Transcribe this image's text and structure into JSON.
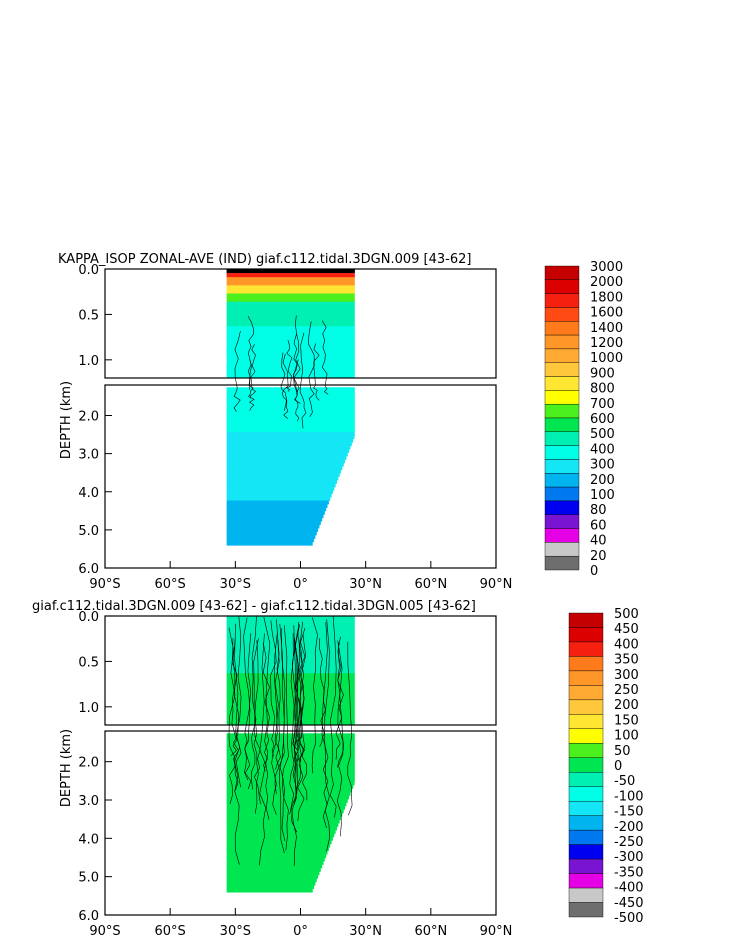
{
  "chart_data": [
    {
      "type": "heatmap",
      "title": "KAPPA_ISOP ZONAL-AVE (IND) giaf.c112.tidal.3DGN.009 [43-62]",
      "xlabel": "",
      "ylabel": "DEPTH (km)",
      "x_ticks": [
        "90°S",
        "60°S",
        "30°S",
        "0°",
        "30°N",
        "60°N",
        "90°N"
      ],
      "y_ticks_upper": [
        "0.0",
        "0.5",
        "1.0"
      ],
      "y_ticks_lower": [
        "2.0",
        "3.0",
        "4.0",
        "5.0",
        "6.0"
      ],
      "y_break_km": 1.2,
      "xlim": [
        -90,
        90
      ],
      "ylim": [
        0,
        6
      ],
      "data_extent": {
        "lat_min": -34,
        "lat_max": 25,
        "max_depth_km": 5.4
      },
      "colorbar_labels": [
        "3000",
        "2000",
        "1800",
        "1600",
        "1400",
        "1200",
        "1000",
        "900",
        "800",
        "700",
        "600",
        "500",
        "400",
        "300",
        "200",
        "100",
        "80",
        "60",
        "40",
        "20",
        "0"
      ],
      "colorbar_colors": [
        "#c40000",
        "#dc0000",
        "#f52010",
        "#ff4a14",
        "#ff7a1a",
        "#ff9628",
        "#ffaa32",
        "#ffc83c",
        "#ffe632",
        "#ffff00",
        "#4cf01c",
        "#00e650",
        "#00f0b4",
        "#00ffe6",
        "#14e6f5",
        "#00b4f0",
        "#0078f0",
        "#0000f0",
        "#7814d2",
        "#e600e6",
        "#c8c8c8",
        "#6e6e6e"
      ],
      "profile": [
        {
          "depth": 0.0,
          "value": 2200
        },
        {
          "depth": 0.1,
          "value": 1400
        },
        {
          "depth": 0.2,
          "value": 900
        },
        {
          "depth": 0.4,
          "value": 500
        },
        {
          "depth": 0.8,
          "value": 350
        },
        {
          "depth": 2.0,
          "value": 320
        },
        {
          "depth": 3.5,
          "value": 250
        },
        {
          "depth": 5.0,
          "value": 150
        }
      ]
    },
    {
      "type": "heatmap",
      "title": "giaf.c112.tidal.3DGN.009 [43-62] - giaf.c112.tidal.3DGN.005 [43-62]",
      "xlabel": "",
      "ylabel": "DEPTH (km)",
      "x_ticks": [
        "90°S",
        "60°S",
        "30°S",
        "0°",
        "30°N",
        "60°N",
        "90°N"
      ],
      "y_ticks_upper": [
        "0.0",
        "0.5",
        "1.0"
      ],
      "y_ticks_lower": [
        "2.0",
        "3.0",
        "4.0",
        "5.0",
        "6.0"
      ],
      "y_break_km": 1.2,
      "xlim": [
        -90,
        90
      ],
      "ylim": [
        0,
        6
      ],
      "data_extent": {
        "lat_min": -34,
        "lat_max": 25,
        "max_depth_km": 5.4
      },
      "colorbar_labels": [
        "500",
        "450",
        "400",
        "350",
        "300",
        "250",
        "200",
        "150",
        "100",
        "50",
        "0",
        "-50",
        "-100",
        "-150",
        "-200",
        "-250",
        "-300",
        "-350",
        "-400",
        "-450",
        "-500"
      ],
      "colorbar_colors": [
        "#c40000",
        "#dc0000",
        "#f52010",
        "#ff7a1a",
        "#ff9628",
        "#ffaa32",
        "#ffc83c",
        "#ffe632",
        "#ffff00",
        "#4cf01c",
        "#00e650",
        "#00f0b4",
        "#00ffe6",
        "#14e6f5",
        "#00b4f0",
        "#0078f0",
        "#0000f0",
        "#7814d2",
        "#e600e6",
        "#c8c8c8",
        "#6e6e6e"
      ],
      "profile": [
        {
          "depth": 0.0,
          "value": -20
        },
        {
          "depth": 1.0,
          "value": 10
        },
        {
          "depth": 3.0,
          "value": 20
        },
        {
          "depth": 5.0,
          "value": 20
        }
      ]
    }
  ]
}
